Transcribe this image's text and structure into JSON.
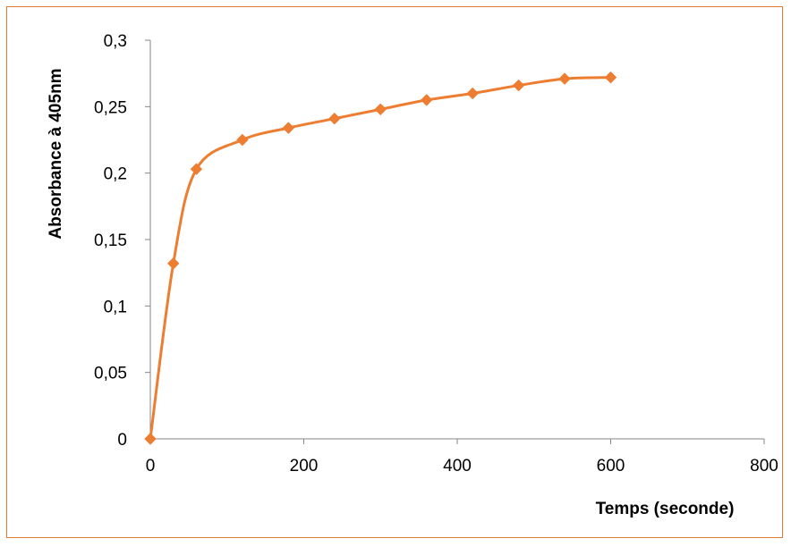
{
  "chart_data": {
    "type": "line",
    "title": "",
    "xlabel": "Temps (seconde)",
    "ylabel": "Absorbance à 405nm",
    "xlim": [
      0,
      800
    ],
    "ylim": [
      0,
      0.3
    ],
    "x_ticks": [
      "0",
      "200",
      "400",
      "600",
      "800"
    ],
    "y_ticks": [
      "0",
      "0,05",
      "0,1",
      "0,15",
      "0,2",
      "0,25",
      "0,3"
    ],
    "x_tick_values": [
      0,
      200,
      400,
      600,
      800
    ],
    "y_tick_values": [
      0,
      0.05,
      0.1,
      0.15,
      0.2,
      0.25,
      0.3
    ],
    "grid": false,
    "legend": "none",
    "smooth": true,
    "marker": "diamond",
    "series": [
      {
        "color": "#ed7d31",
        "x": [
          0,
          30,
          60,
          120,
          180,
          240,
          300,
          360,
          420,
          480,
          540,
          600
        ],
        "y": [
          0,
          0.132,
          0.203,
          0.225,
          0.234,
          0.241,
          0.248,
          0.255,
          0.26,
          0.266,
          0.271,
          0.272
        ]
      }
    ]
  },
  "colors": {
    "frame_border": "#e07a2e",
    "axis": "#868686"
  }
}
